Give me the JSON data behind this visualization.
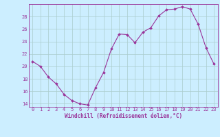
{
  "x": [
    0,
    1,
    2,
    3,
    4,
    5,
    6,
    7,
    8,
    9,
    10,
    11,
    12,
    13,
    14,
    15,
    16,
    17,
    18,
    19,
    20,
    21,
    22,
    23
  ],
  "y": [
    20.8,
    20.0,
    18.3,
    17.2,
    15.5,
    14.5,
    14.0,
    13.8,
    16.6,
    19.0,
    22.8,
    25.2,
    25.1,
    23.8,
    25.5,
    26.2,
    28.1,
    29.1,
    29.2,
    29.6,
    29.2,
    26.8,
    23.0,
    20.4
  ],
  "line_color": "#993399",
  "marker": "D",
  "marker_size": 2.0,
  "bg_color": "#cceeff",
  "grid_color": "#aacccc",
  "xlabel": "Windchill (Refroidissement éolien,°C)",
  "xlabel_color": "#993399",
  "tick_color": "#993399",
  "spine_color": "#993399",
  "ylim": [
    13.5,
    30.0
  ],
  "xlim": [
    -0.5,
    23.5
  ],
  "yticks": [
    14,
    16,
    18,
    20,
    22,
    24,
    26,
    28
  ],
  "xticks": [
    0,
    1,
    2,
    3,
    4,
    5,
    6,
    7,
    8,
    9,
    10,
    11,
    12,
    13,
    14,
    15,
    16,
    17,
    18,
    19,
    20,
    21,
    22,
    23
  ],
  "tick_fontsize": 5.0,
  "xlabel_fontsize": 5.5,
  "linewidth": 0.8
}
